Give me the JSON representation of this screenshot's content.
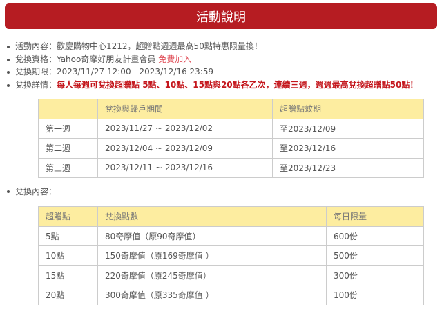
{
  "header": {
    "title": "活動說明"
  },
  "info": [
    {
      "label": "活動內容：",
      "text": "歡慶購物中心1212，超贈點週週最高50點特惠限量換！"
    },
    {
      "label": "兌換資格：",
      "text": "Yahoo奇摩好朋友計畫會員 ",
      "link": "免費加入"
    },
    {
      "label": "兌換期限：",
      "text": "2023/11/27 12:00 - 2023/12/16 23:59"
    },
    {
      "label": "兌換詳情：",
      "highlight": "每人每週可兌換超贈點 5點、10點、15點與20點各乙次，連續三週，週週最高兌換超贈點50點！"
    }
  ],
  "weeks": {
    "headers": [
      "",
      "兌換與歸戶期間",
      "超贈點效期"
    ],
    "rows": [
      [
        "第一週",
        "2023/11/27 ~ 2023/12/02",
        "至2023/12/09"
      ],
      [
        "第二週",
        "2023/12/04 ~ 2023/12/09",
        "至2023/12/16"
      ],
      [
        "第三週",
        "2023/12/11 ~ 2023/12/16",
        "至2023/12/23"
      ]
    ]
  },
  "content_label": "兌換內容：",
  "exchange": {
    "headers": [
      "超贈點",
      "兌換點數",
      "每日限量"
    ],
    "rows": [
      [
        "5點",
        "80奇摩值（原90奇摩值）",
        "600份"
      ],
      [
        "10點",
        "150奇摩值（原169奇摩值 ）",
        "500份"
      ],
      [
        "15點",
        "220奇摩值（原245奇摩值）",
        "300份"
      ],
      [
        "20點",
        "300奇摩值（原335奇摩值 ）",
        "100份"
      ]
    ]
  },
  "colors": {
    "header_bg": "#b61c22",
    "table_header_bg": "#fdeda0",
    "highlight": "#c4161c"
  }
}
